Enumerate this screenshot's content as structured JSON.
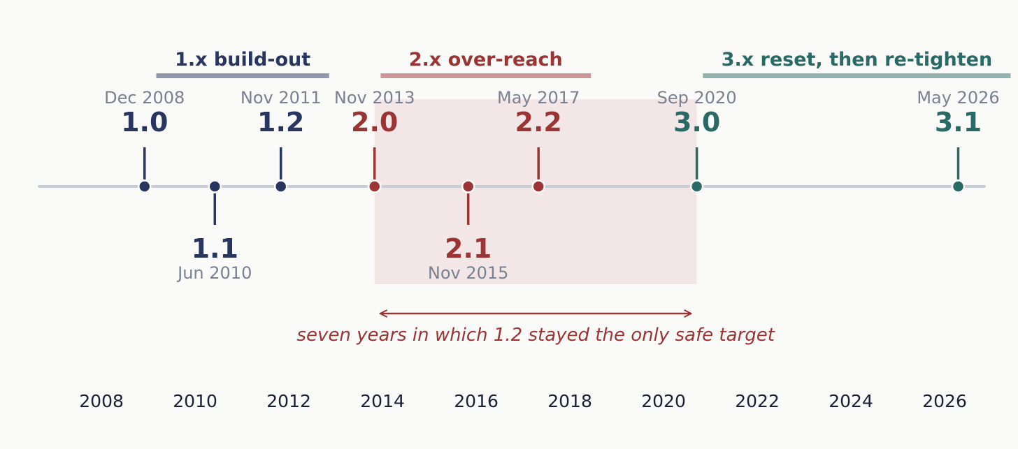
{
  "eras": [
    {
      "label": "1.x  build-out",
      "color": "#28355f",
      "start": 2009.17,
      "end": 2012.86
    },
    {
      "label": "2.x  over-reach",
      "color": "#9b3535",
      "start": 2013.96,
      "end": 2018.45
    },
    {
      "label": "3.x  reset, then re-tighten",
      "color": "#2a6a66",
      "start": 2020.84,
      "end": 2027.41
    }
  ],
  "releases": [
    {
      "version": "1.0",
      "date": "Dec 2008",
      "year": 2008.92,
      "side": "above",
      "color": "#28355f"
    },
    {
      "version": "1.1",
      "date": "Jun 2010",
      "year": 2010.42,
      "side": "below",
      "color": "#28355f"
    },
    {
      "version": "1.2",
      "date": "Nov 2011",
      "year": 2011.83,
      "side": "above",
      "color": "#28355f"
    },
    {
      "version": "2.0",
      "date": "Nov 2013",
      "year": 2013.83,
      "side": "above",
      "color": "#9b3535"
    },
    {
      "version": "2.1",
      "date": "Nov 2015",
      "year": 2015.83,
      "side": "below",
      "color": "#9b3535"
    },
    {
      "version": "2.2",
      "date": "May 2017",
      "year": 2017.33,
      "side": "above",
      "color": "#9b3535"
    },
    {
      "version": "3.0",
      "date": "Sep 2020",
      "year": 2020.71,
      "side": "above",
      "color": "#2a6a66"
    },
    {
      "version": "3.1",
      "date": "May 2026",
      "year": 2026.29,
      "side": "above",
      "color": "#2a6a66"
    }
  ],
  "highlight": {
    "start": 2013.83,
    "end": 2020.71,
    "color": "#f3e6e6",
    "note": "seven years in which 1.2 stayed the only safe target",
    "note_color": "#9b3535"
  },
  "axis": {
    "range": [
      2006.67,
      2026.85
    ],
    "ticks": [
      "2008",
      "2010",
      "2012",
      "2014",
      "2016",
      "2018",
      "2020",
      "2022",
      "2024",
      "2026"
    ],
    "line_color": "#c9cdd6"
  }
}
